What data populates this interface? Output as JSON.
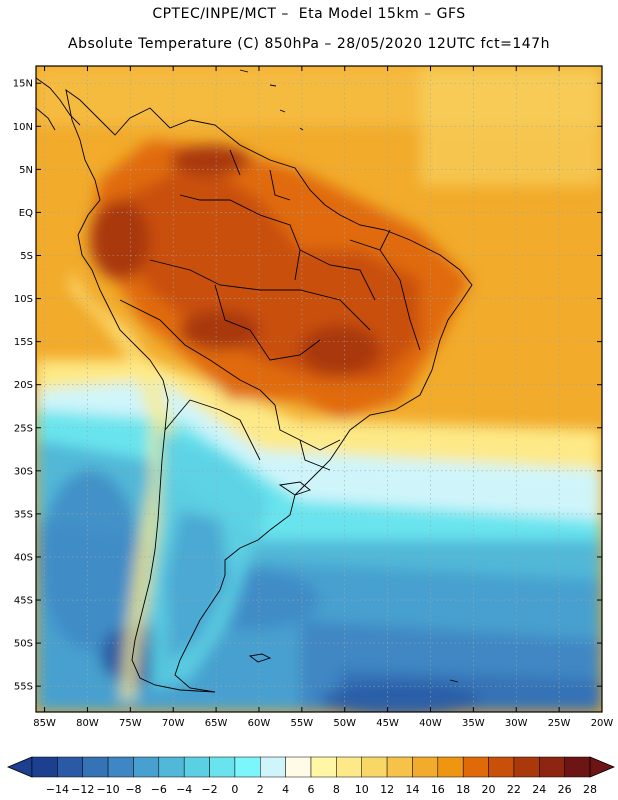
{
  "header": {
    "line1": "CPTEC/INPE/MCT –  Eta Model 15km – GFS",
    "line2": "Absolute Temperature (C) 850hPa – 28/05/2020 12UTC fct=147h"
  },
  "axes": {
    "lat_labels": [
      "15N",
      "10N",
      "5N",
      "EQ",
      "5S",
      "10S",
      "15S",
      "20S",
      "25S",
      "30S",
      "35S",
      "40S",
      "45S",
      "50S",
      "55S"
    ],
    "lon_labels": [
      "85W",
      "80W",
      "75W",
      "70W",
      "65W",
      "60W",
      "55W",
      "50W",
      "45W",
      "40W",
      "35W",
      "30W",
      "25W",
      "20W"
    ],
    "lat_range": [
      17,
      -58
    ],
    "lon_range": [
      -86,
      -20
    ]
  },
  "colorbar": {
    "labels": [
      "-14",
      "-12",
      "-10",
      "-8",
      "-6",
      "-4",
      "-2",
      "0",
      "2",
      "4",
      "6",
      "8",
      "10",
      "12",
      "14",
      "16",
      "18",
      "20",
      "22",
      "24",
      "26",
      "28"
    ],
    "colors": [
      "#1c3f8f",
      "#2a5aa5",
      "#3672b6",
      "#3f87c4",
      "#47a0cf",
      "#51b8d8",
      "#5cd0e3",
      "#69e4ee",
      "#7cf5fb",
      "#cff5fa",
      "#fffbe6",
      "#fff7a6",
      "#fde987",
      "#f9d766",
      "#f6c24a",
      "#f2ab2b",
      "#ee9612",
      "#e06a08",
      "#c9500a",
      "#a9380b",
      "#8c2610",
      "#6d1515"
    ]
  },
  "map": {
    "ocean_color": "#f2ab2b",
    "grid": true,
    "borders": true
  }
}
